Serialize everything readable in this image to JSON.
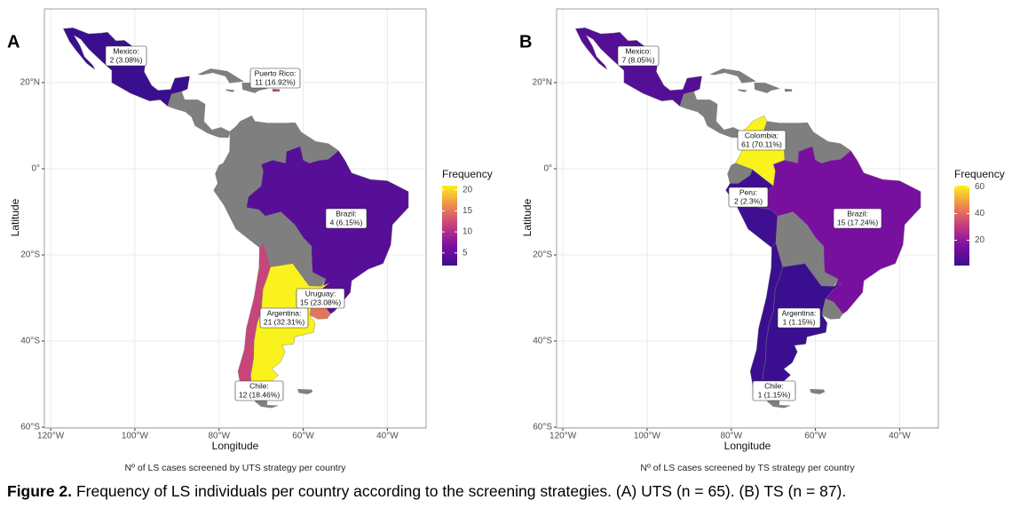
{
  "panels": [
    {
      "letter": "A",
      "xlabel": "Longitude",
      "ylabel": "Latitude",
      "caption": "Nº of LS cases screened by UTS strategy per country",
      "xlim": [
        -121.5,
        -30.8
      ],
      "ylim": [
        -60.2,
        37.1
      ],
      "xticks": [
        {
          "value": -120,
          "label": "120°W"
        },
        {
          "value": -100,
          "label": "100°W"
        },
        {
          "value": -80,
          "label": "80°W"
        },
        {
          "value": -60,
          "label": "60°W"
        },
        {
          "value": -40,
          "label": "40°W"
        }
      ],
      "yticks": [
        {
          "value": 20,
          "label": "20°N"
        },
        {
          "value": 0,
          "label": "0°"
        },
        {
          "value": -20,
          "label": "20°S"
        },
        {
          "value": -40,
          "label": "40°S"
        },
        {
          "value": -60,
          "label": "60°S"
        }
      ],
      "legend": {
        "title": "Frequency",
        "range": [
          2,
          21
        ],
        "ticks": [
          5,
          10,
          15,
          20
        ]
      },
      "countries": [
        {
          "name": "Mexico:",
          "value": 2,
          "value_label": "2 (3.08%)"
        },
        {
          "name": "Puerto Rico:",
          "value": 11,
          "value_label": "11 (16.92%)"
        },
        {
          "name": "Brazil:",
          "value": 4,
          "value_label": "4 (6.15%)"
        },
        {
          "name": "Uruguay:",
          "value": 15,
          "value_label": "15 (23.08%)"
        },
        {
          "name": "Argentina:",
          "value": 21,
          "value_label": "21 (32.31%)"
        },
        {
          "name": "Chile:",
          "value": 12,
          "value_label": "12 (18.46%)"
        }
      ]
    },
    {
      "letter": "B",
      "xlabel": "Longitude",
      "ylabel": "Latitude",
      "caption": "Nº of LS cases screened by TS strategy per country",
      "xlim": [
        -121.5,
        -30.8
      ],
      "ylim": [
        -60.2,
        37.1
      ],
      "xticks": [
        {
          "value": -120,
          "label": "120°W"
        },
        {
          "value": -100,
          "label": "100°W"
        },
        {
          "value": -80,
          "label": "80°W"
        },
        {
          "value": -60,
          "label": "60°W"
        },
        {
          "value": -40,
          "label": "40°W"
        }
      ],
      "yticks": [
        {
          "value": 20,
          "label": "20°N"
        },
        {
          "value": 0,
          "label": "0°"
        },
        {
          "value": -20,
          "label": "20°S"
        },
        {
          "value": -40,
          "label": "40°S"
        },
        {
          "value": -60,
          "label": "60°S"
        }
      ],
      "legend": {
        "title": "Frequency",
        "range": [
          1,
          61
        ],
        "ticks": [
          20,
          40,
          60
        ]
      },
      "countries": [
        {
          "name": "Mexico:",
          "value": 7,
          "value_label": "7 (8.05%)"
        },
        {
          "name": "Colombia:",
          "value": 61,
          "value_label": "61 (70.11%)"
        },
        {
          "name": "Peru:",
          "value": 2,
          "value_label": "2 (2.3%)"
        },
        {
          "name": "Brazil:",
          "value": 15,
          "value_label": "15 (17.24%)"
        },
        {
          "name": "Argentina:",
          "value": 1,
          "value_label": "1 (1.15%)"
        },
        {
          "name": "Chile:",
          "value": 1,
          "value_label": "1 (1.15%)"
        }
      ]
    }
  ],
  "palette": [
    "#3a0f8f",
    "#7c10a0",
    "#c33d80",
    "#f0884f",
    "#f9f21d"
  ],
  "na_color": "#7f7f7f",
  "figure_caption": {
    "label": "Figure 2.",
    "text": "Frequency of LS individuals per country according to the screening strategies. (A) UTS (n = 65). (B) TS (n = 87)."
  }
}
